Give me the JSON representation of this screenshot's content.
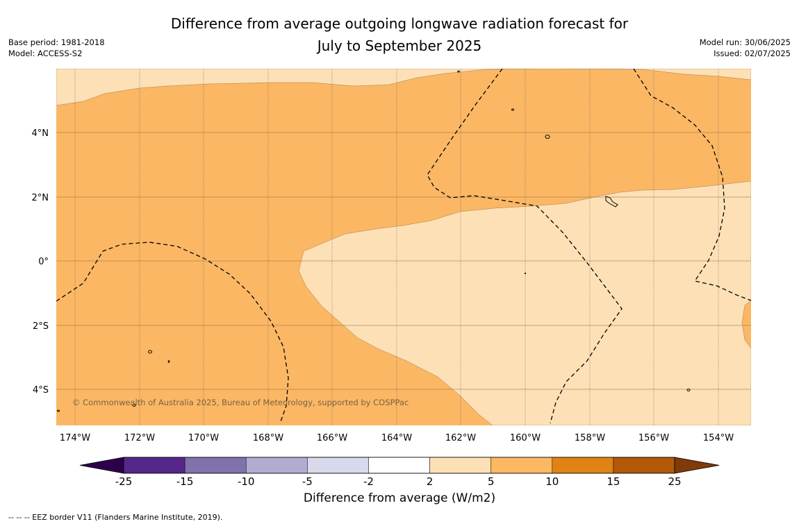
{
  "title": {
    "line1": "Difference from average outgoing longwave radiation forecast for",
    "line2": "July to September 2025"
  },
  "meta_left": {
    "base_period": "Base period: 1981-2018",
    "model": "Model: ACCESS-S2"
  },
  "meta_right": {
    "model_run": "Model run: 30/06/2025",
    "issued": "Issued: 02/07/2025"
  },
  "map": {
    "copyright": "© Commonwealth of Australia 2025, Bureau of Meteorology, supported by COSPPac",
    "lon_labels": [
      "174°W",
      "172°W",
      "170°W",
      "168°W",
      "166°W",
      "164°W",
      "162°W",
      "160°W",
      "158°W",
      "156°W",
      "154°W"
    ],
    "lat_labels": [
      "4°N",
      "2°N",
      "0°",
      "2°S",
      "4°S"
    ],
    "colors": {
      "anomaly_2_5": "#fde0b6",
      "anomaly_5_10": "#fbb764",
      "eez_border": "#000000"
    }
  },
  "colorbar": {
    "title": "Difference from average (W/m2)",
    "ticks": [
      "-25",
      "-15",
      "-10",
      "-5",
      "-2",
      "2",
      "5",
      "10",
      "15",
      "25"
    ],
    "bin_colors": [
      "#542788",
      "#8073ac",
      "#b2abd2",
      "#d8daeb",
      "#ffffff",
      "#fee0b6",
      "#fdb863",
      "#e08214",
      "#b35806"
    ],
    "extend_low_color": "#2d004b",
    "extend_high_color": "#7f3b08"
  },
  "footnote": "--  --  -- EEZ border V11 (Flanders Marine Institute, 2019)."
}
